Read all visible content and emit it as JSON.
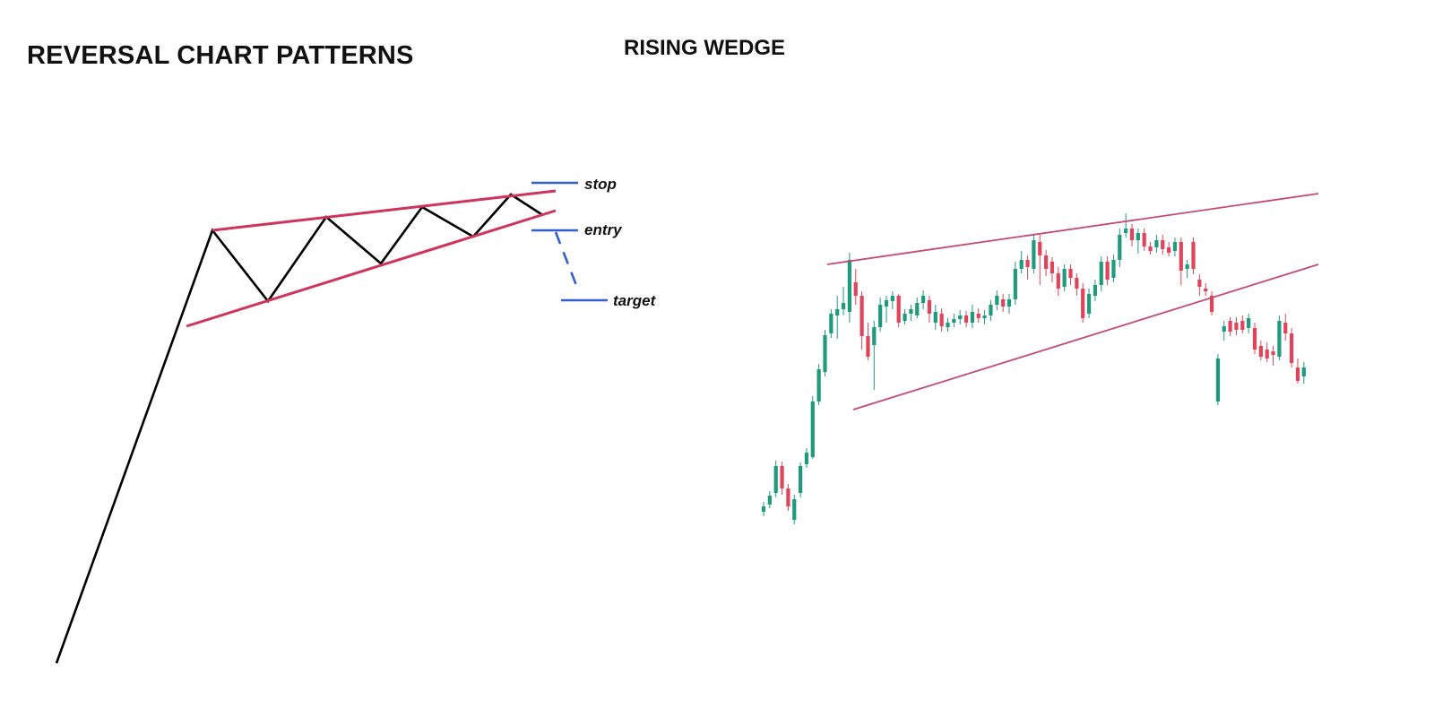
{
  "page_title": "REVERSAL CHART PATTERNS",
  "pattern_title": "RISING WEDGE",
  "colors": {
    "text": "#111111",
    "price_line": "#000000",
    "wedge_line": "#d0335c",
    "level_line": "#2f5fd0",
    "candle_up": "#1f9a7c",
    "candle_down": "#e0445a",
    "chart_wedge_line": "#c44a72"
  },
  "levels": {
    "stop_label": "stop",
    "entry_label": "entry",
    "target_label": "target"
  },
  "icons": {
    "breakdown_arrow": "dashed-arrow-icon"
  }
}
